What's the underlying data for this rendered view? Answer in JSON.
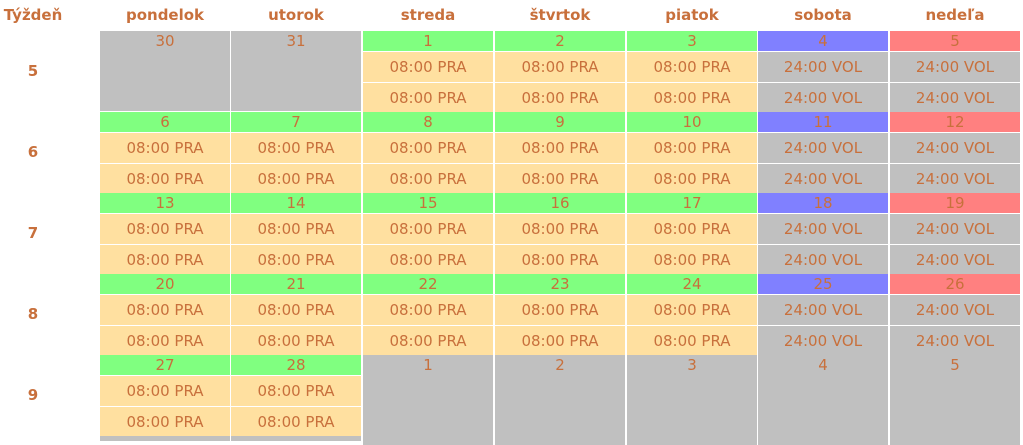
{
  "header": {
    "week_label": "Týždeň",
    "days": [
      "pondelok",
      "utorok",
      "streda",
      "štvrtok",
      "piatok",
      "sobota",
      "nedeľa"
    ]
  },
  "weeks": [
    {
      "number": "5",
      "days": [
        {
          "num": "30",
          "type": "out",
          "shifts": []
        },
        {
          "num": "31",
          "type": "out",
          "shifts": []
        },
        {
          "num": "1",
          "type": "weekday",
          "shifts": [
            "08:00 PRA",
            "08:00 PRA"
          ]
        },
        {
          "num": "2",
          "type": "weekday",
          "shifts": [
            "08:00 PRA",
            "08:00 PRA"
          ]
        },
        {
          "num": "3",
          "type": "weekday",
          "shifts": [
            "08:00 PRA",
            "08:00 PRA"
          ]
        },
        {
          "num": "4",
          "type": "saturday",
          "shifts": [
            "24:00 VOL",
            "24:00 VOL"
          ]
        },
        {
          "num": "5",
          "type": "sunday",
          "shifts": [
            "24:00 VOL",
            "24:00 VOL"
          ]
        }
      ]
    },
    {
      "number": "6",
      "days": [
        {
          "num": "6",
          "type": "weekday",
          "shifts": [
            "08:00 PRA",
            "08:00 PRA"
          ]
        },
        {
          "num": "7",
          "type": "weekday",
          "shifts": [
            "08:00 PRA",
            "08:00 PRA"
          ]
        },
        {
          "num": "8",
          "type": "weekday",
          "shifts": [
            "08:00 PRA",
            "08:00 PRA"
          ]
        },
        {
          "num": "9",
          "type": "weekday",
          "shifts": [
            "08:00 PRA",
            "08:00 PRA"
          ]
        },
        {
          "num": "10",
          "type": "weekday",
          "shifts": [
            "08:00 PRA",
            "08:00 PRA"
          ]
        },
        {
          "num": "11",
          "type": "saturday",
          "shifts": [
            "24:00 VOL",
            "24:00 VOL"
          ]
        },
        {
          "num": "12",
          "type": "sunday",
          "shifts": [
            "24:00 VOL",
            "24:00 VOL"
          ]
        }
      ]
    },
    {
      "number": "7",
      "days": [
        {
          "num": "13",
          "type": "weekday",
          "shifts": [
            "08:00 PRA",
            "08:00 PRA"
          ]
        },
        {
          "num": "14",
          "type": "weekday",
          "shifts": [
            "08:00 PRA",
            "08:00 PRA"
          ]
        },
        {
          "num": "15",
          "type": "weekday",
          "shifts": [
            "08:00 PRA",
            "08:00 PRA"
          ]
        },
        {
          "num": "16",
          "type": "weekday",
          "shifts": [
            "08:00 PRA",
            "08:00 PRA"
          ]
        },
        {
          "num": "17",
          "type": "weekday",
          "shifts": [
            "08:00 PRA",
            "08:00 PRA"
          ]
        },
        {
          "num": "18",
          "type": "saturday",
          "shifts": [
            "24:00 VOL",
            "24:00 VOL"
          ]
        },
        {
          "num": "19",
          "type": "sunday",
          "shifts": [
            "24:00 VOL",
            "24:00 VOL"
          ]
        }
      ]
    },
    {
      "number": "8",
      "days": [
        {
          "num": "20",
          "type": "weekday",
          "shifts": [
            "08:00 PRA",
            "08:00 PRA"
          ]
        },
        {
          "num": "21",
          "type": "weekday",
          "shifts": [
            "08:00 PRA",
            "08:00 PRA"
          ]
        },
        {
          "num": "22",
          "type": "weekday",
          "shifts": [
            "08:00 PRA",
            "08:00 PRA"
          ]
        },
        {
          "num": "23",
          "type": "weekday",
          "shifts": [
            "08:00 PRA",
            "08:00 PRA"
          ]
        },
        {
          "num": "24",
          "type": "weekday",
          "shifts": [
            "08:00 PRA",
            "08:00 PRA"
          ]
        },
        {
          "num": "25",
          "type": "saturday",
          "shifts": [
            "24:00 VOL",
            "24:00 VOL"
          ]
        },
        {
          "num": "26",
          "type": "sunday",
          "shifts": [
            "24:00 VOL",
            "24:00 VOL"
          ]
        }
      ]
    },
    {
      "number": "9",
      "days": [
        {
          "num": "27",
          "type": "weekday",
          "shifts": [
            "08:00 PRA",
            "08:00 PRA"
          ]
        },
        {
          "num": "28",
          "type": "weekday",
          "shifts": [
            "08:00 PRA",
            "08:00 PRA"
          ]
        },
        {
          "num": "1",
          "type": "out",
          "shifts": []
        },
        {
          "num": "2",
          "type": "out",
          "shifts": []
        },
        {
          "num": "3",
          "type": "out",
          "shifts": []
        },
        {
          "num": "4",
          "type": "out",
          "shifts": []
        },
        {
          "num": "5",
          "type": "out",
          "shifts": []
        }
      ]
    }
  ],
  "colors": {
    "text": "#c8703c",
    "weekday_header": "#80ff80",
    "saturday_header": "#8080ff",
    "sunday_header": "#ff8080",
    "work_shift": "#ffe0a0",
    "off_shift": "#c0c0c0",
    "out_of_month": "#c0c0c0"
  }
}
